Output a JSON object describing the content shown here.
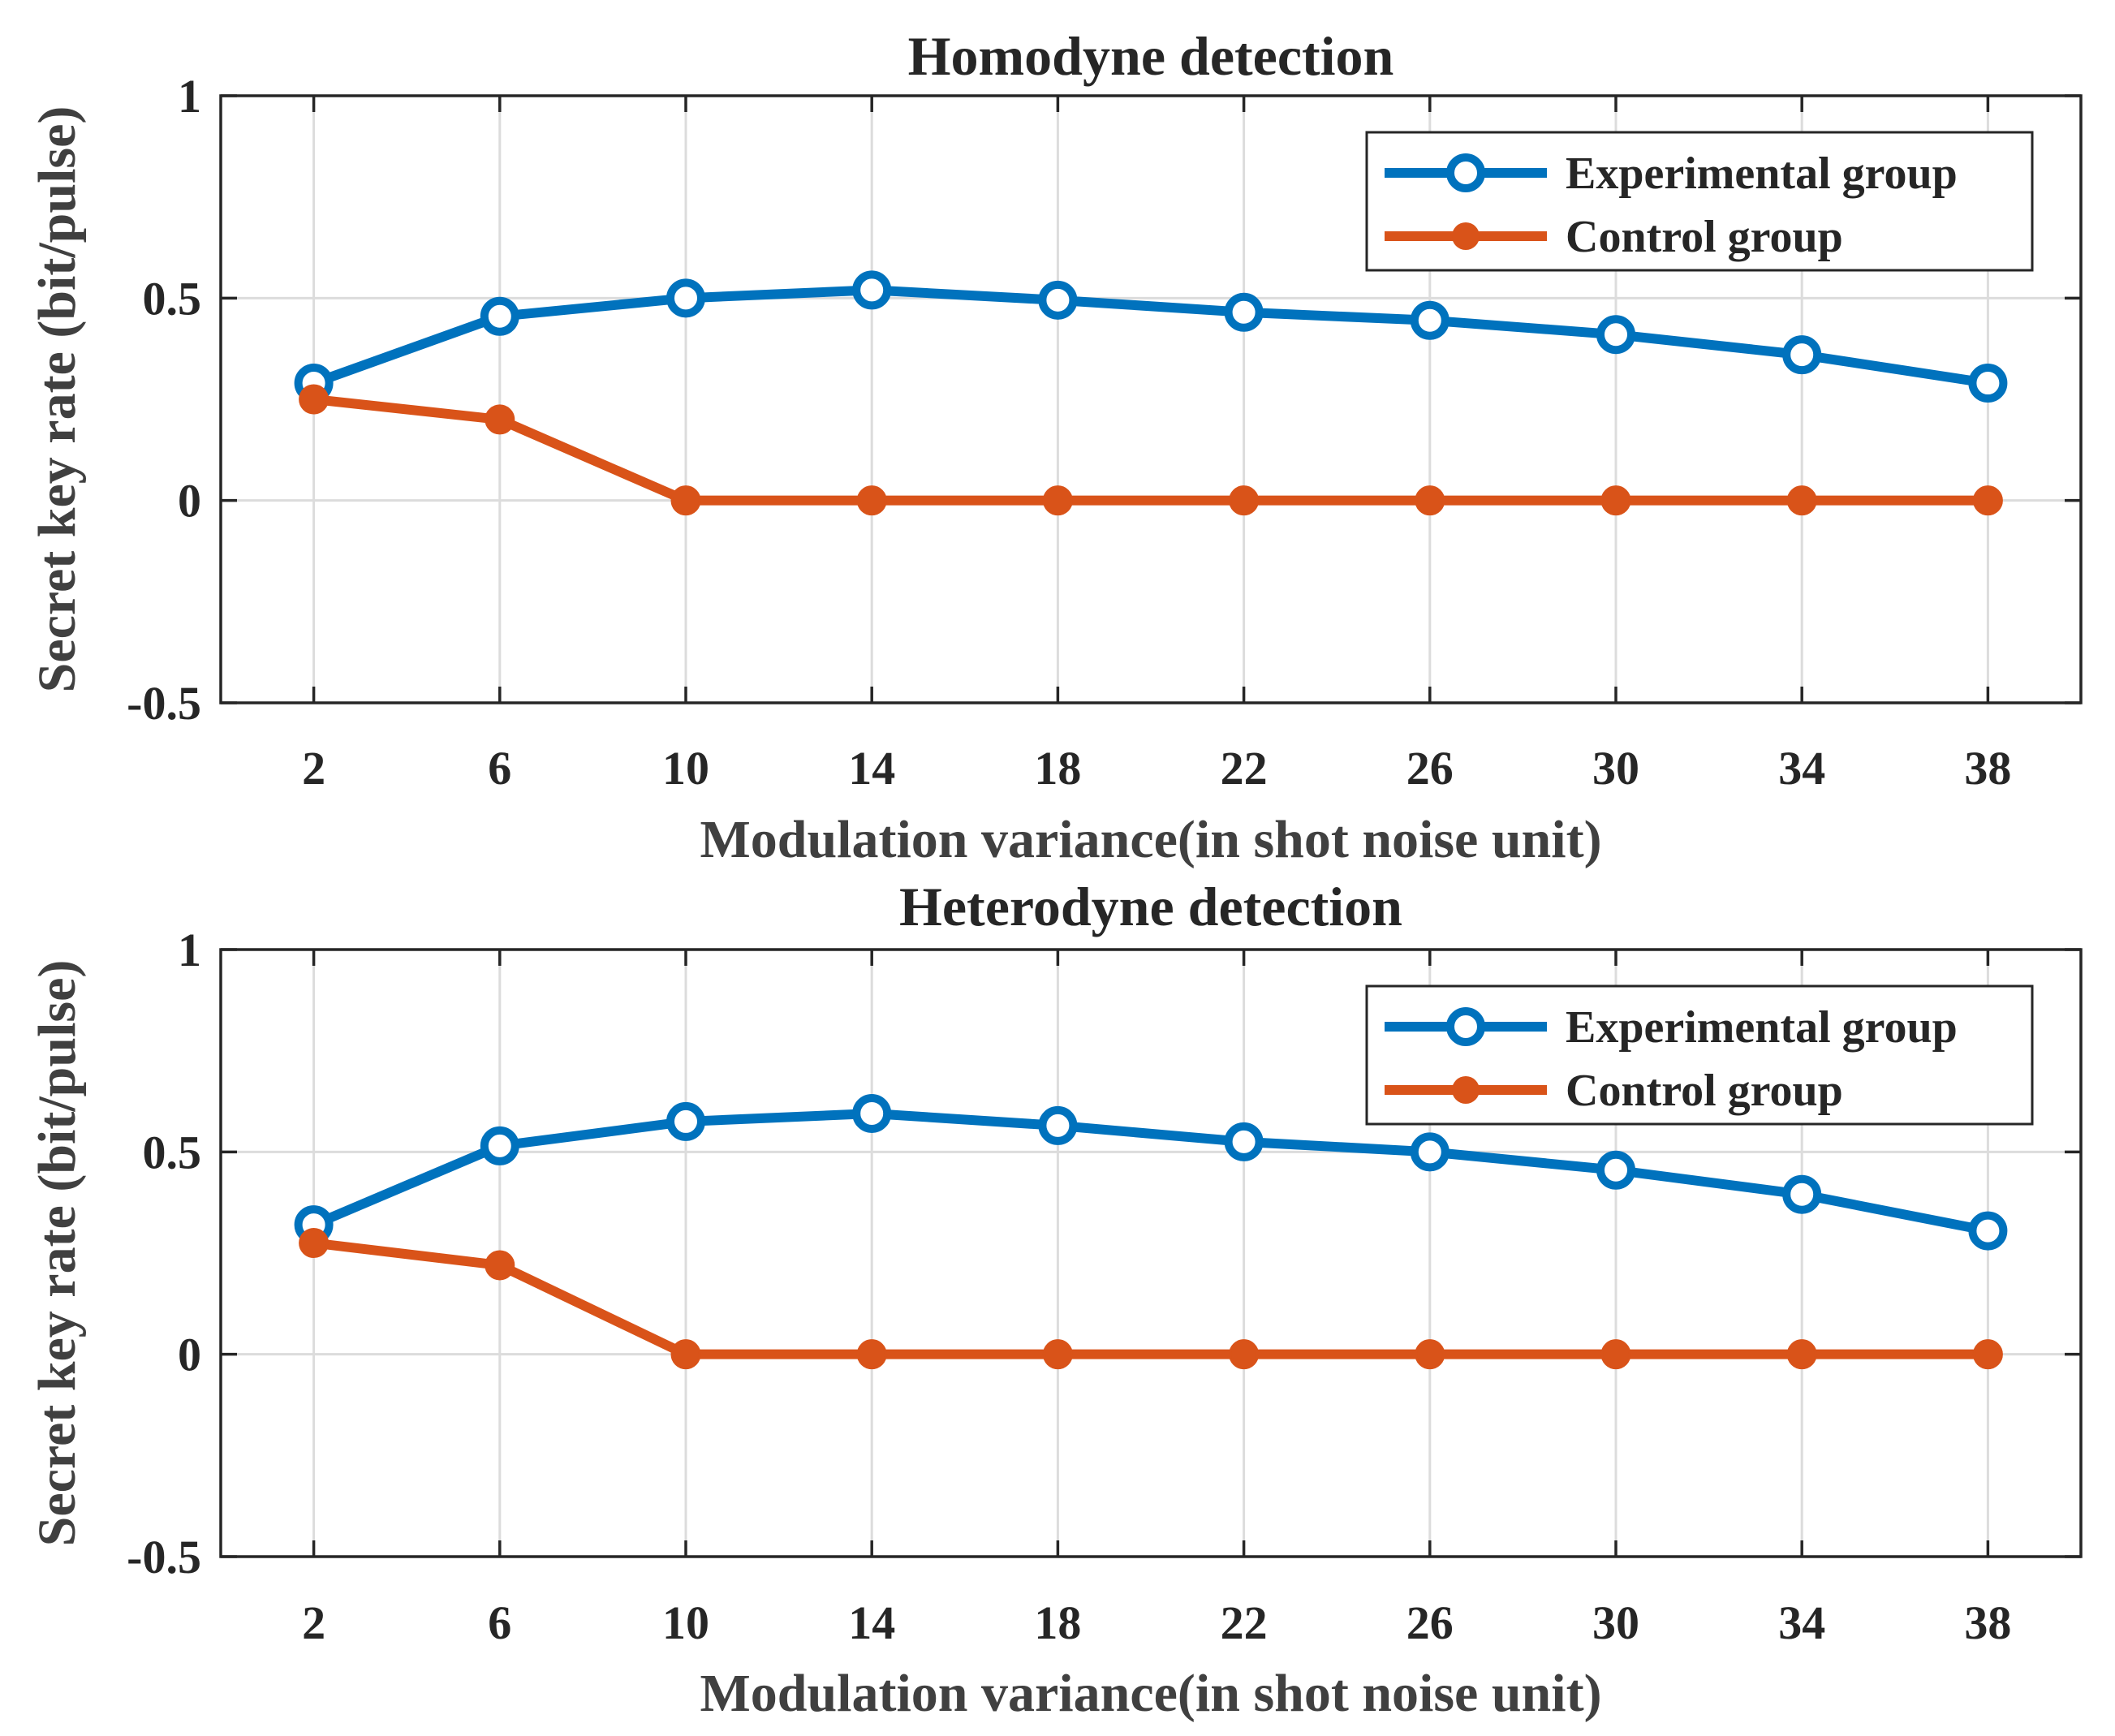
{
  "colors": {
    "experimental": "#0072BD",
    "control": "#D95319"
  },
  "chart_data": [
    {
      "type": "line",
      "title": "Homodyne detection",
      "xlabel": "Modulation variance(in shot noise unit)",
      "ylabel": "Secret key rate (bit/pulse)",
      "x": [
        2,
        6,
        10,
        14,
        18,
        22,
        26,
        30,
        34,
        38
      ],
      "xticks": [
        "2",
        "6",
        "10",
        "14",
        "18",
        "22",
        "26",
        "30",
        "34",
        "38"
      ],
      "xlim": [
        0,
        40
      ],
      "ylim": [
        -0.5,
        1
      ],
      "yticks": [
        -0.5,
        0,
        0.5,
        1
      ],
      "ytick_labels": [
        "-0.5",
        "0",
        "0.5",
        "1"
      ],
      "grid": true,
      "legend_position": "top-right",
      "series": [
        {
          "name": "Experimental group",
          "marker": "open-circle",
          "values": [
            0.29,
            0.455,
            0.5,
            0.52,
            0.495,
            0.465,
            0.445,
            0.41,
            0.36,
            0.29
          ]
        },
        {
          "name": "Control group",
          "marker": "filled-circle",
          "values": [
            0.25,
            0.2,
            0,
            0,
            0,
            0,
            0,
            0,
            0,
            0
          ]
        }
      ]
    },
    {
      "type": "line",
      "title": "Heterodyne detection",
      "xlabel": "Modulation variance(in shot noise unit)",
      "ylabel": "Secret key rate (bit/pulse)",
      "x": [
        2,
        6,
        10,
        14,
        18,
        22,
        26,
        30,
        34,
        38
      ],
      "xticks": [
        "2",
        "6",
        "10",
        "14",
        "18",
        "22",
        "26",
        "30",
        "34",
        "38"
      ],
      "xlim": [
        0,
        40
      ],
      "ylim": [
        -0.5,
        1
      ],
      "yticks": [
        -0.5,
        0,
        0.5,
        1
      ],
      "ytick_labels": [
        "-0.5",
        "0",
        "0.5",
        "1"
      ],
      "grid": true,
      "legend_position": "top-right",
      "series": [
        {
          "name": "Experimental group",
          "marker": "open-circle",
          "values": [
            0.32,
            0.515,
            0.575,
            0.595,
            0.565,
            0.525,
            0.5,
            0.455,
            0.395,
            0.305
          ]
        },
        {
          "name": "Control group",
          "marker": "filled-circle",
          "values": [
            0.275,
            0.22,
            0,
            0,
            0,
            0,
            0,
            0,
            0,
            0
          ]
        }
      ]
    }
  ]
}
